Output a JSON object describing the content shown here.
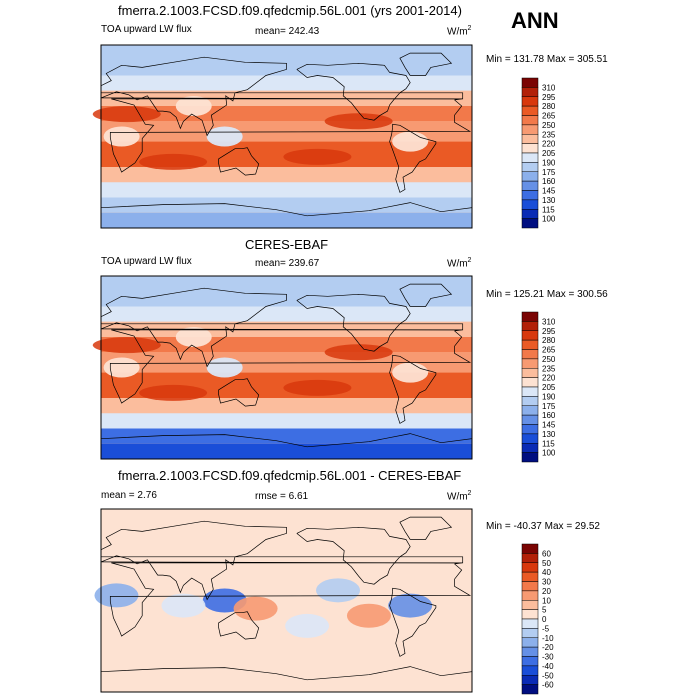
{
  "season": "ANN",
  "panels": [
    {
      "title": "fmerra.2.1003.FCSD.f09.qfedcmip.56L.001 (yrs 2001-2014)",
      "left_label": "TOA upward LW flux",
      "center_label": "mean= 242.43",
      "units": "W/m",
      "units_sup": "2",
      "minmax": "Min = 131.78 Max = 305.51"
    },
    {
      "title": "CERES-EBAF",
      "left_label": "TOA upward LW flux",
      "center_label": "mean= 239.67",
      "units": "W/m",
      "units_sup": "2",
      "minmax": "Min = 125.21 Max = 300.56"
    },
    {
      "title": "fmerra.2.1003.FCSD.f09.qfedcmip.56L.001 - CERES-EBAF",
      "left_label": "mean =   2.76",
      "center_label": "rmse =   6.61",
      "units": "W/m",
      "units_sup": "2",
      "minmax": "Min = -40.37 Max =  29.52"
    }
  ],
  "chart_data": [
    {
      "type": "heatmap",
      "title": "fmerra.2.1003.FCSD.f09.qfedcmip.56L.001 (yrs 2001-2014)",
      "variable": "TOA upward LW flux",
      "units": "W/m2",
      "mean": 242.43,
      "min": 131.78,
      "max": 305.51,
      "colorbar_levels": [
        310,
        295,
        280,
        265,
        250,
        235,
        220,
        205,
        190,
        175,
        160,
        145,
        130,
        115,
        100
      ],
      "colorbar_colors": [
        "#7a0403",
        "#b22008",
        "#d8380d",
        "#ea5a25",
        "#f2794a",
        "#f79a72",
        "#fbbd9d",
        "#fde2d2",
        "#dbe7f7",
        "#b3cdf1",
        "#8cb0eb",
        "#6590e6",
        "#3d6ee3",
        "#1a4ed8",
        "#0a2bb5",
        "#000e80"
      ]
    },
    {
      "type": "heatmap",
      "title": "CERES-EBAF",
      "variable": "TOA upward LW flux",
      "units": "W/m2",
      "mean": 239.67,
      "min": 125.21,
      "max": 300.56,
      "colorbar_levels": [
        310,
        295,
        280,
        265,
        250,
        235,
        220,
        205,
        190,
        175,
        160,
        145,
        130,
        115,
        100
      ],
      "colorbar_colors": [
        "#7a0403",
        "#b22008",
        "#d8380d",
        "#ea5a25",
        "#f2794a",
        "#f79a72",
        "#fbbd9d",
        "#fde2d2",
        "#dbe7f7",
        "#b3cdf1",
        "#8cb0eb",
        "#6590e6",
        "#3d6ee3",
        "#1a4ed8",
        "#0a2bb5",
        "#000e80"
      ]
    },
    {
      "type": "heatmap",
      "title": "fmerra.2.1003.FCSD.f09.qfedcmip.56L.001 - CERES-EBAF",
      "variable": "TOA upward LW flux difference",
      "units": "W/m2",
      "mean": 2.76,
      "rmse": 6.61,
      "min": -40.37,
      "max": 29.52,
      "colorbar_levels": [
        60,
        50,
        40,
        30,
        20,
        10,
        5,
        0,
        -5,
        -10,
        -20,
        -30,
        -40,
        -50,
        -60
      ],
      "colorbar_colors": [
        "#7a0403",
        "#b22008",
        "#d8380d",
        "#ea5a25",
        "#f2794a",
        "#f79a72",
        "#fbbd9d",
        "#fde2d2",
        "#dbe7f7",
        "#b3cdf1",
        "#8cb0eb",
        "#6590e6",
        "#3d6ee3",
        "#1a4ed8",
        "#0a2bb5",
        "#000e80"
      ]
    }
  ]
}
